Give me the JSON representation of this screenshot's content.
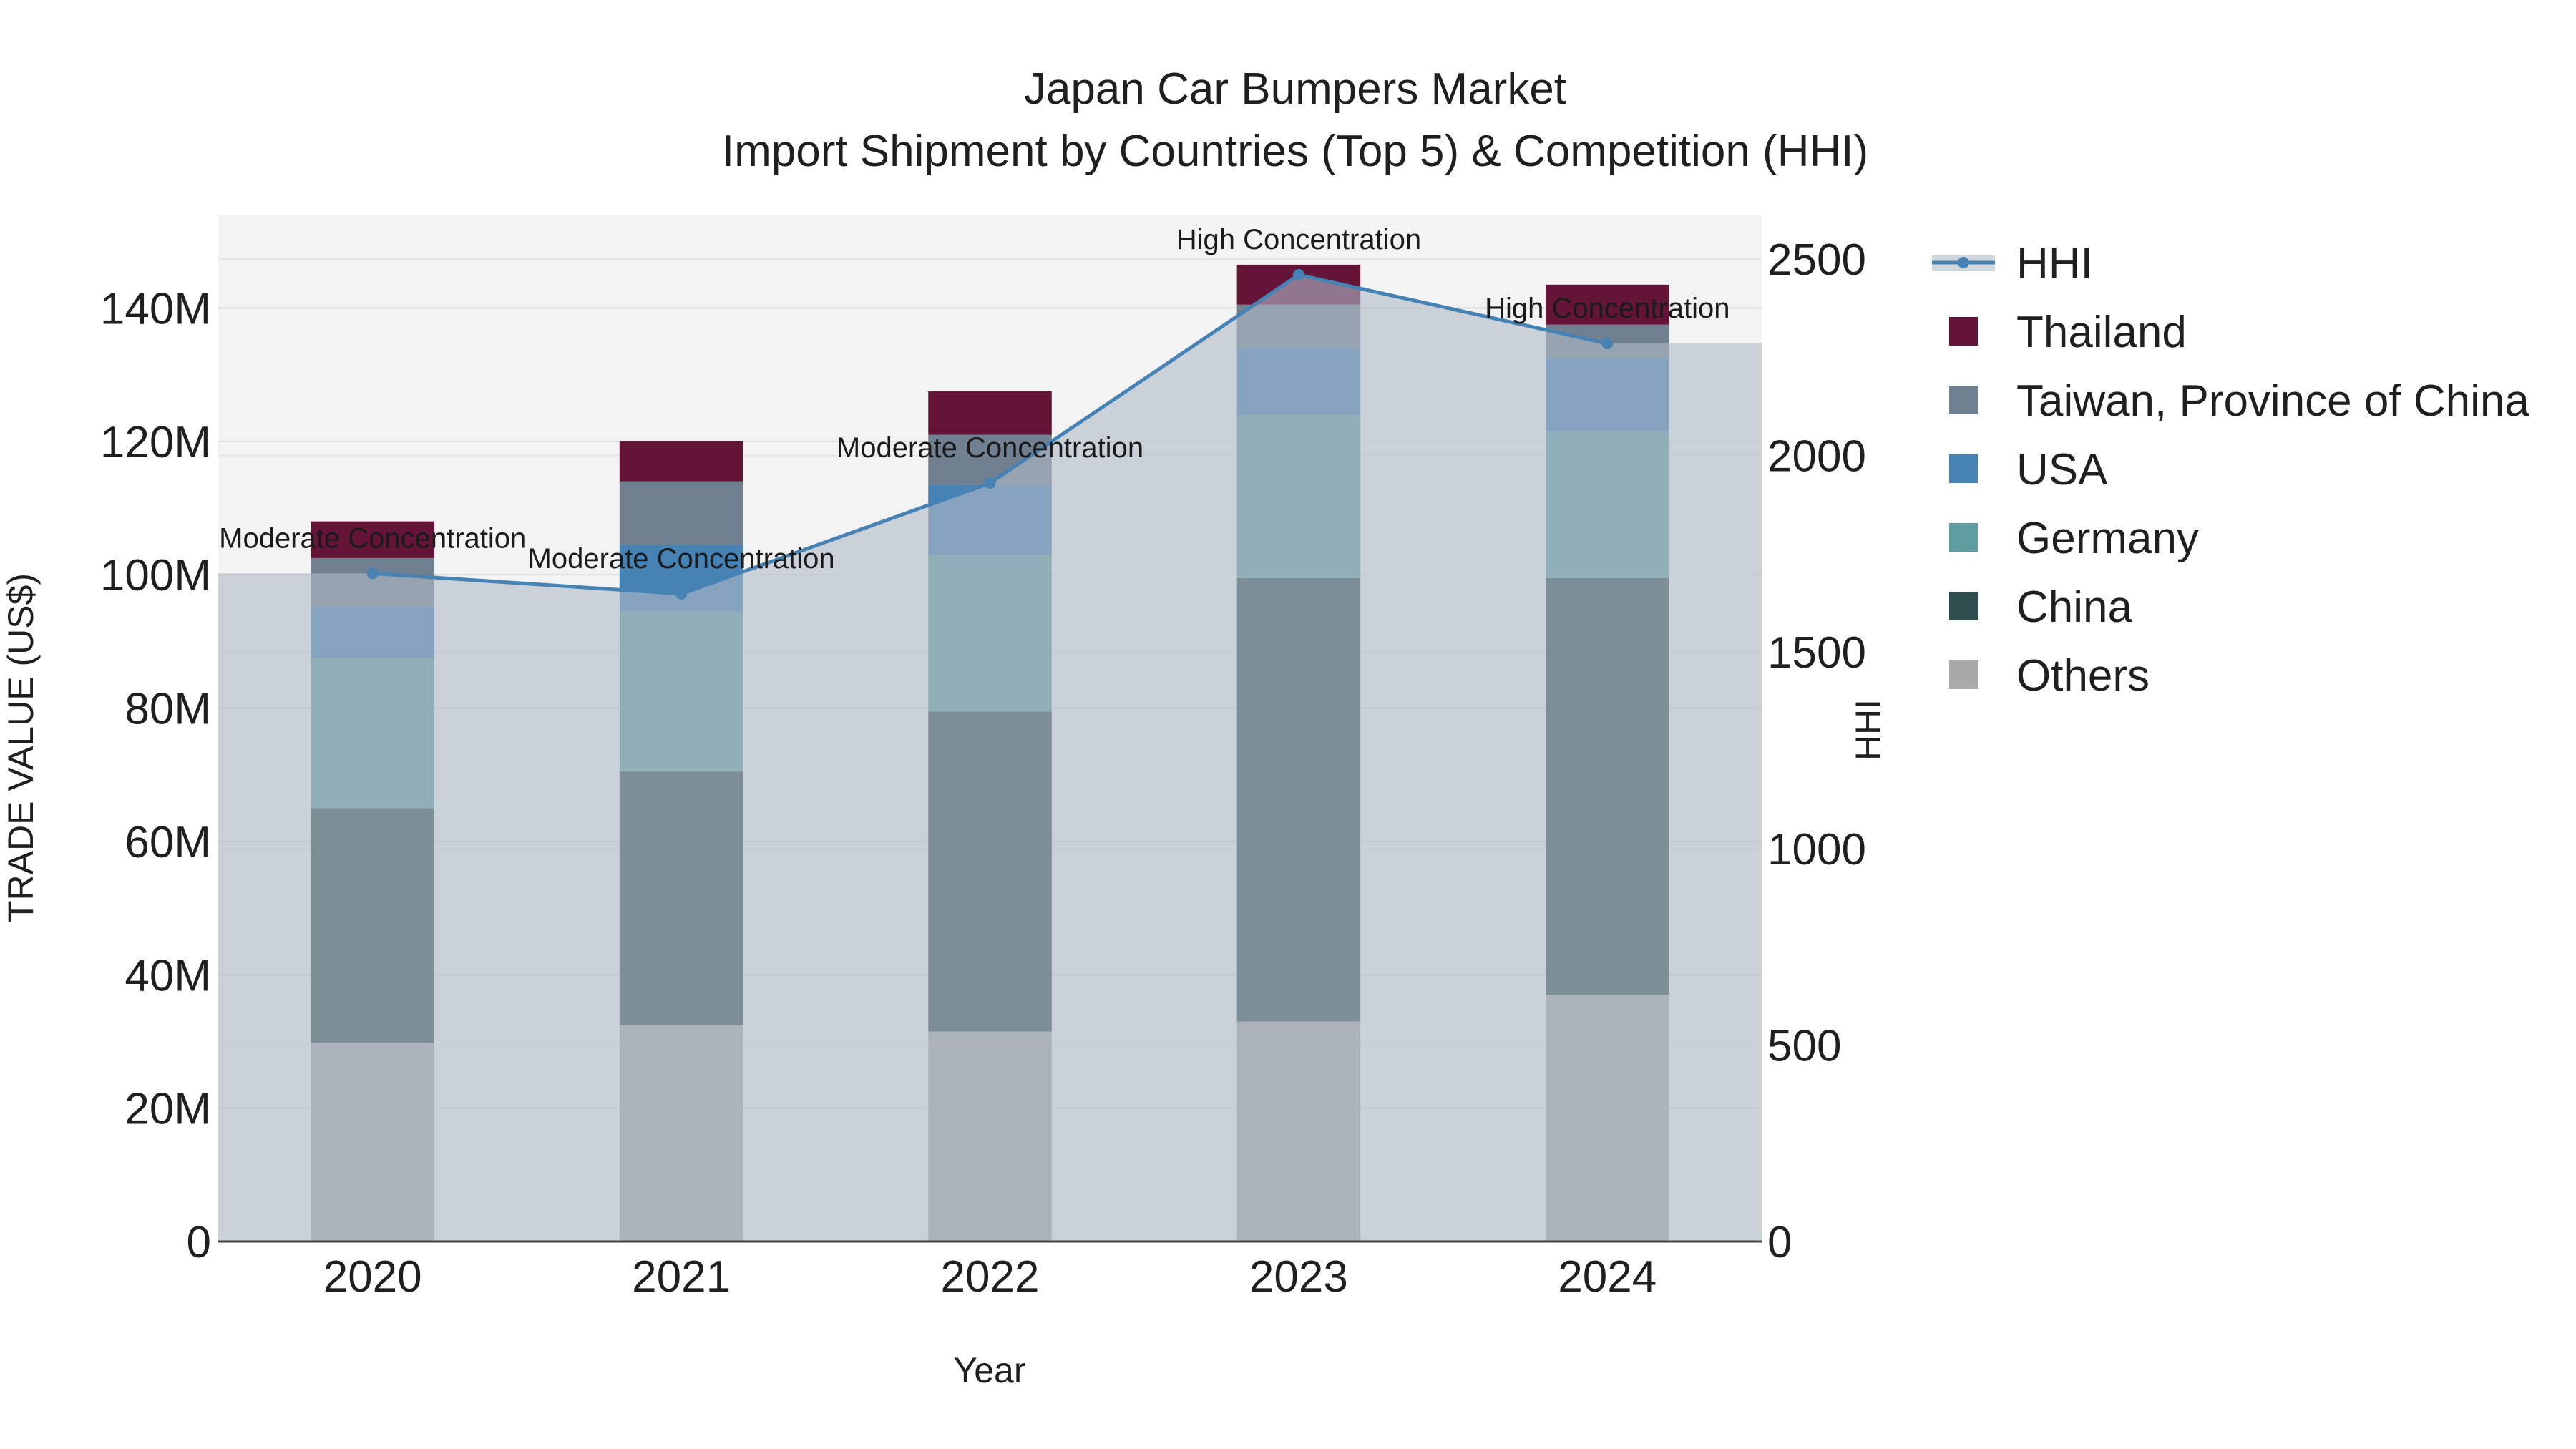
{
  "chart_data": {
    "type": "bar",
    "title": "Japan Car Bumpers Market",
    "subtitle": "Import Shipment by Countries (Top 5) & Competition (HHI)",
    "xlabel": "Year",
    "ylabel": "TRADE VALUE (US$)",
    "y2label": "HHI",
    "categories": [
      "2020",
      "2021",
      "2022",
      "2023",
      "2024"
    ],
    "ylim": [
      0,
      154000000
    ],
    "y2lim": [
      0,
      2613
    ],
    "y_ticks": [
      0,
      20000000,
      40000000,
      60000000,
      80000000,
      100000000,
      120000000,
      140000000
    ],
    "y_tick_labels": [
      "0",
      "20M",
      "40M",
      "60M",
      "80M",
      "100M",
      "120M",
      "140M"
    ],
    "y2_ticks": [
      0,
      500,
      1000,
      1500,
      2000,
      2500
    ],
    "y2_tick_labels": [
      "0",
      "500",
      "1000",
      "1500",
      "2000",
      "2500"
    ],
    "stack_order": [
      "Others",
      "China",
      "Germany",
      "USA",
      "Taiwan, Province of China",
      "Thailand"
    ],
    "series": [
      {
        "name": "Others",
        "color": "#a9a9a9",
        "values": [
          29800000,
          32500000,
          31500000,
          33000000,
          37000000
        ]
      },
      {
        "name": "China",
        "color": "#2f4f4f",
        "values": [
          35200000,
          38000000,
          48000000,
          66500000,
          62500000
        ]
      },
      {
        "name": "Germany",
        "color": "#5f9ea0",
        "values": [
          22500000,
          24000000,
          23500000,
          24500000,
          22000000
        ]
      },
      {
        "name": "USA",
        "color": "#4682b4",
        "values": [
          7700000,
          10000000,
          10500000,
          10000000,
          11000000
        ]
      },
      {
        "name": "Taiwan, Province of China",
        "color": "#708090",
        "values": [
          7300000,
          9500000,
          7500000,
          6500000,
          5000000
        ]
      },
      {
        "name": "Thailand",
        "color": "#641537",
        "values": [
          5500000,
          6000000,
          6500000,
          6000000,
          6000000
        ]
      }
    ],
    "hhi": {
      "name": "HHI",
      "color": "#4682b4",
      "values": [
        1700,
        1648,
        1930,
        2460,
        2285
      ],
      "annotations": [
        "Moderate Concentration",
        "Moderate Concentration",
        "Moderate Concentration",
        "High Concentration",
        "High Concentration"
      ]
    },
    "legend_order": [
      "HHI",
      "Thailand",
      "Taiwan, Province of China",
      "USA",
      "Germany",
      "China",
      "Others"
    ],
    "legend_position": "right"
  }
}
